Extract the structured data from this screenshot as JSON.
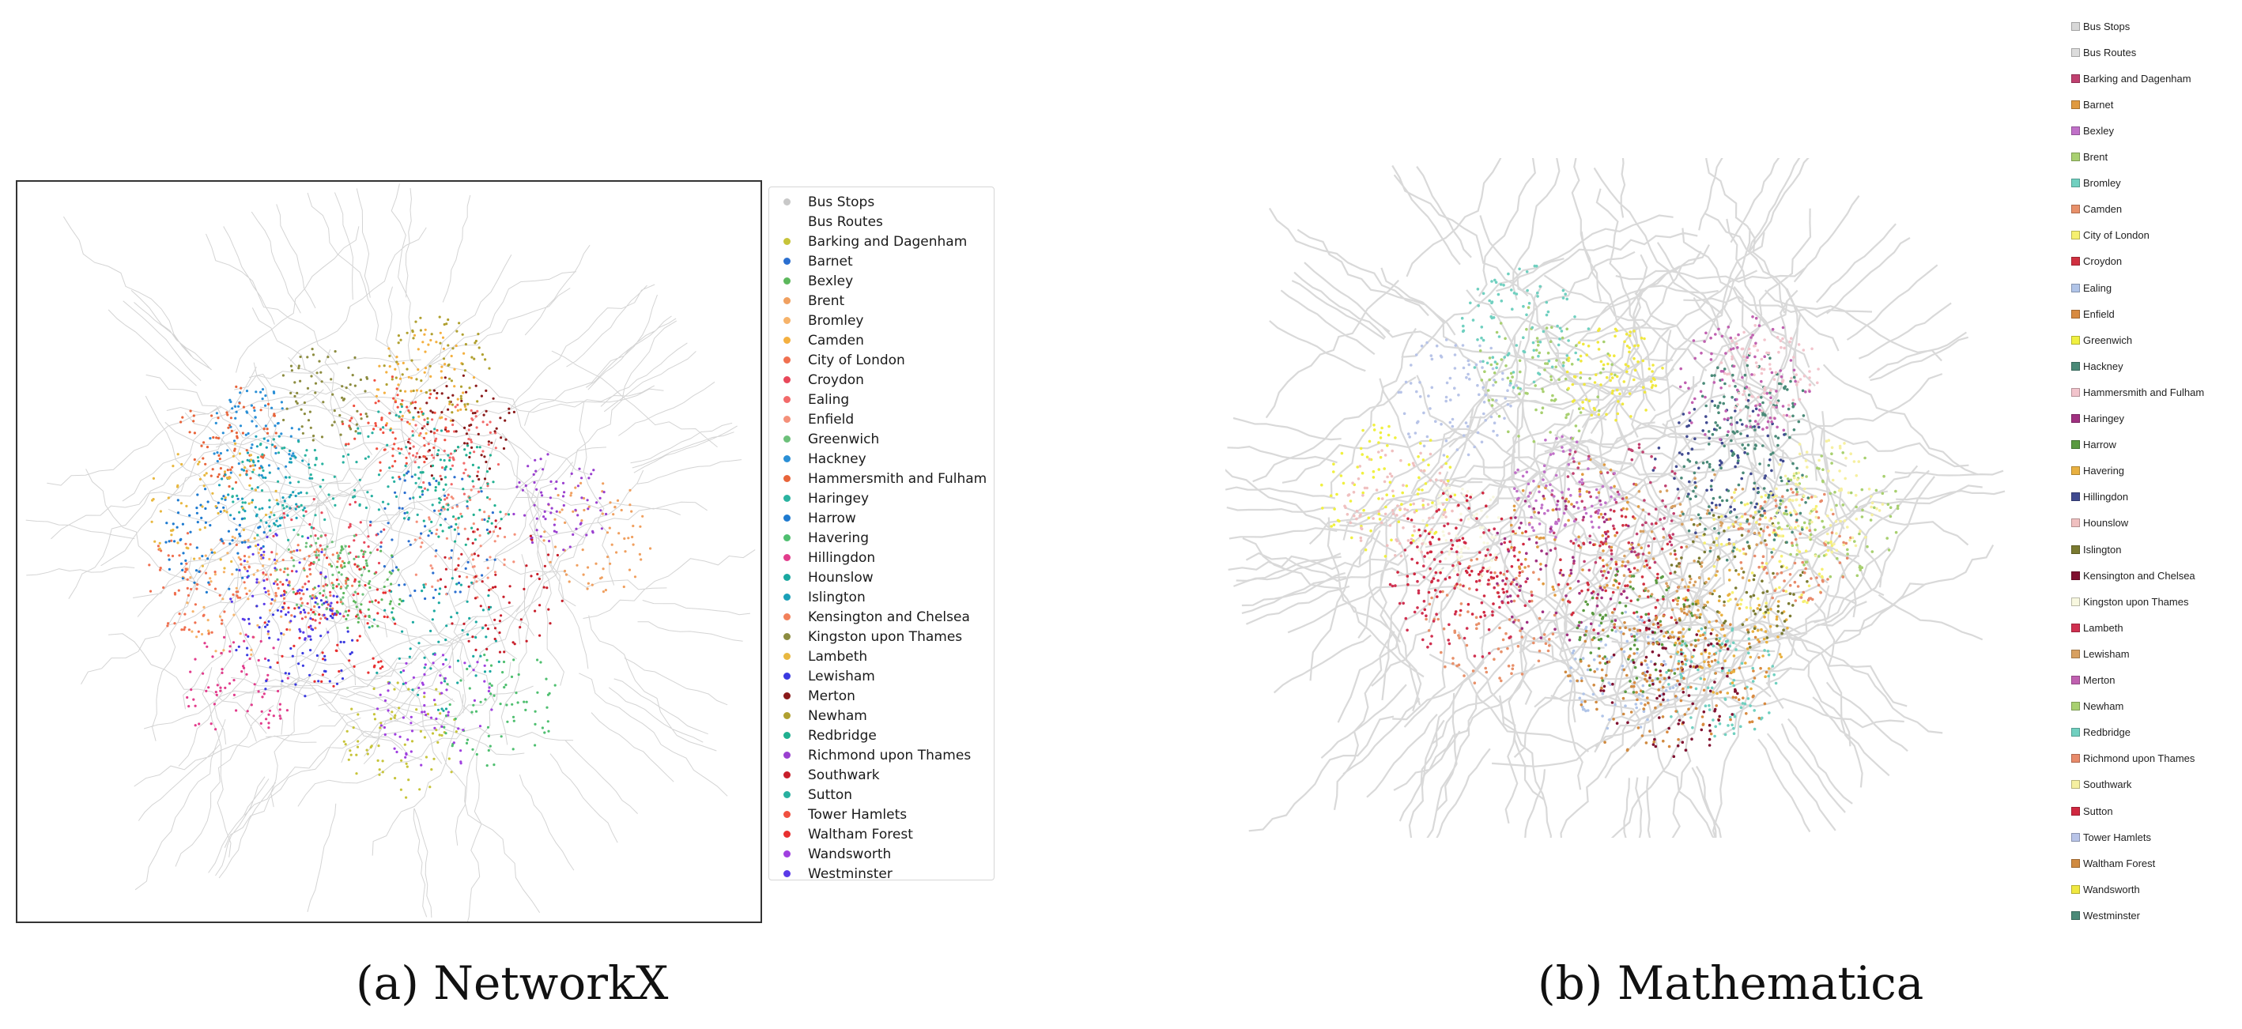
{
  "panel_a": {
    "caption": "(a) NetworkX",
    "legend": [
      {
        "label": "Bus Stops",
        "color": "#c8c8c8"
      },
      {
        "label": "Bus Routes",
        "color": "#ffffff"
      },
      {
        "label": "Barking and Dagenham",
        "color": "#c7c43a"
      },
      {
        "label": "Barnet",
        "color": "#2b6fd0"
      },
      {
        "label": "Bexley",
        "color": "#5cb85c"
      },
      {
        "label": "Brent",
        "color": "#f0a060"
      },
      {
        "label": "Bromley",
        "color": "#f6b36a"
      },
      {
        "label": "Camden",
        "color": "#f4b040"
      },
      {
        "label": "City of London",
        "color": "#f07050"
      },
      {
        "label": "Croydon",
        "color": "#e8485a"
      },
      {
        "label": "Ealing",
        "color": "#f26a6a"
      },
      {
        "label": "Enfield",
        "color": "#f4907a"
      },
      {
        "label": "Greenwich",
        "color": "#6cc07a"
      },
      {
        "label": "Hackney",
        "color": "#2a8fd6"
      },
      {
        "label": "Hammersmith and Fulham",
        "color": "#e8643a"
      },
      {
        "label": "Haringey",
        "color": "#2ab3a0"
      },
      {
        "label": "Harrow",
        "color": "#1e7ad0"
      },
      {
        "label": "Havering",
        "color": "#4fbf70"
      },
      {
        "label": "Hillingdon",
        "color": "#e23c8c"
      },
      {
        "label": "Hounslow",
        "color": "#1aa8a0"
      },
      {
        "label": "Islington",
        "color": "#1aa0b8"
      },
      {
        "label": "Kensington and Chelsea",
        "color": "#f2805a"
      },
      {
        "label": "Kingston upon Thames",
        "color": "#8c8c40"
      },
      {
        "label": "Lambeth",
        "color": "#e8b840"
      },
      {
        "label": "Lewisham",
        "color": "#3a3ae0"
      },
      {
        "label": "Merton",
        "color": "#8a1a1a"
      },
      {
        "label": "Newham",
        "color": "#b0a030"
      },
      {
        "label": "Redbridge",
        "color": "#20b090"
      },
      {
        "label": "Richmond upon Thames",
        "color": "#9a40d0"
      },
      {
        "label": "Southwark",
        "color": "#c81e2a"
      },
      {
        "label": "Sutton",
        "color": "#28b0a0"
      },
      {
        "label": "Tower Hamlets",
        "color": "#f05040"
      },
      {
        "label": "Waltham Forest",
        "color": "#e83030"
      },
      {
        "label": "Wandsworth",
        "color": "#a040e0"
      },
      {
        "label": "Westminster",
        "color": "#5a3ae8"
      }
    ]
  },
  "panel_b": {
    "caption": "(b) Mathematica",
    "legend": [
      {
        "label": "Bus Stops",
        "color": "#d8d8d8"
      },
      {
        "label": "Bus Routes",
        "color": "#dcdcdc"
      },
      {
        "label": "Barking and Dagenham",
        "color": "#c04070"
      },
      {
        "label": "Barnet",
        "color": "#e09a40"
      },
      {
        "label": "Bexley",
        "color": "#c070c8"
      },
      {
        "label": "Brent",
        "color": "#a8d070"
      },
      {
        "label": "Bromley",
        "color": "#70d0c0"
      },
      {
        "label": "Camden",
        "color": "#e8906a"
      },
      {
        "label": "City of London",
        "color": "#f6f070"
      },
      {
        "label": "Croydon",
        "color": "#d03040"
      },
      {
        "label": "Ealing",
        "color": "#b0c4e8"
      },
      {
        "label": "Enfield",
        "color": "#d88a40"
      },
      {
        "label": "Greenwich",
        "color": "#f0f040"
      },
      {
        "label": "Hackney",
        "color": "#4a8a78"
      },
      {
        "label": "Hammersmith and Fulham",
        "color": "#f2c4cc"
      },
      {
        "label": "Haringey",
        "color": "#a03080"
      },
      {
        "label": "Harrow",
        "color": "#5a9a40"
      },
      {
        "label": "Havering",
        "color": "#e8b040"
      },
      {
        "label": "Hillingdon",
        "color": "#404a90"
      },
      {
        "label": "Hounslow",
        "color": "#f0c0c0"
      },
      {
        "label": "Islington",
        "color": "#7a7a30"
      },
      {
        "label": "Kensington and Chelsea",
        "color": "#801030"
      },
      {
        "label": "Kingston upon Thames",
        "color": "#f8f8e0"
      },
      {
        "label": "Lambeth",
        "color": "#d03050"
      },
      {
        "label": "Lewisham",
        "color": "#d8a060"
      },
      {
        "label": "Merton",
        "color": "#c060b0"
      },
      {
        "label": "Newham",
        "color": "#a8d070"
      },
      {
        "label": "Redbridge",
        "color": "#70d0c0"
      },
      {
        "label": "Richmond upon Thames",
        "color": "#e88a6a"
      },
      {
        "label": "Southwark",
        "color": "#f6f0a0"
      },
      {
        "label": "Sutton",
        "color": "#d02840"
      },
      {
        "label": "Tower Hamlets",
        "color": "#b8c4e8"
      },
      {
        "label": "Waltham Forest",
        "color": "#d08a40"
      },
      {
        "label": "Wandsworth",
        "color": "#f0e840"
      },
      {
        "label": "Westminster",
        "color": "#4a8a78"
      }
    ]
  }
}
